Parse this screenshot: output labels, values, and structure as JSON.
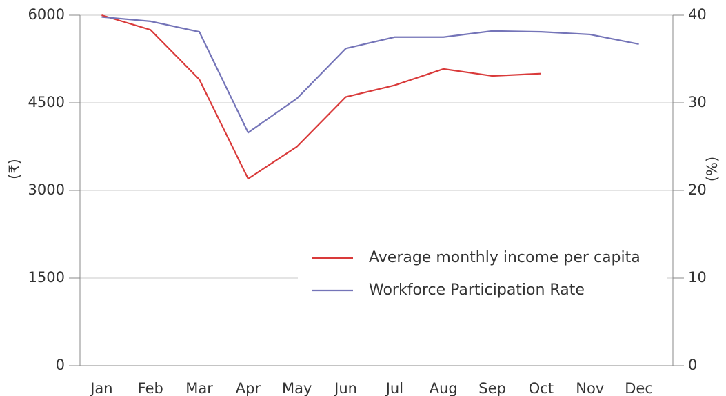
{
  "chart_data": {
    "type": "line",
    "categories": [
      "Jan",
      "Feb",
      "Mar",
      "Apr",
      "May",
      "Jun",
      "Jul",
      "Aug",
      "Sep",
      "Oct",
      "Nov",
      "Dec"
    ],
    "series": [
      {
        "name": "Average monthly income per capita",
        "color": "#d93a3a",
        "values": [
          6000,
          5750,
          4900,
          3200,
          3750,
          4600,
          4800,
          5080,
          4960,
          5000,
          null,
          null
        ]
      },
      {
        "name": "Workforce Participation Rate",
        "color": "#7474b8",
        "axis": "y2",
        "values": [
          39.8,
          39.3,
          38.1,
          26.6,
          30.5,
          36.2,
          37.5,
          37.5,
          38.2,
          38.1,
          37.8,
          36.7
        ]
      }
    ],
    "ylabel": "(₹)",
    "y2label": "(%)",
    "ylim": [
      0,
      6000
    ],
    "yticks": [
      0,
      1500,
      3000,
      4500,
      6000
    ],
    "y2lim": [
      0,
      40
    ],
    "y2ticks": [
      0,
      10,
      20,
      30,
      40
    ],
    "grid": true
  }
}
